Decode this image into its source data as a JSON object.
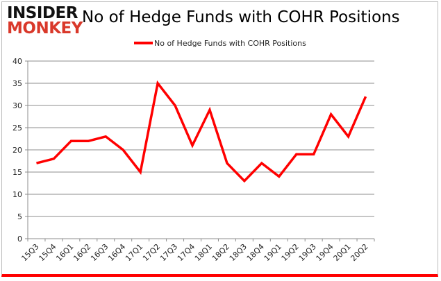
{
  "logo": {
    "line1": "INSIDER",
    "line2": "MONKEY"
  },
  "chart_data": {
    "type": "line",
    "title": "No of Hedge Funds with COHR Positions",
    "categories": [
      "15Q3",
      "15Q4",
      "16Q1",
      "16Q2",
      "16Q3",
      "16Q4",
      "17Q1",
      "17Q2",
      "17Q3",
      "17Q4",
      "18Q1",
      "18Q2",
      "18Q3",
      "18Q4",
      "19Q1",
      "19Q2",
      "19Q3",
      "19Q4",
      "20Q1",
      "20Q2"
    ],
    "series": [
      {
        "name": "No of Hedge Funds with COHR Positions",
        "color": "#ff0000",
        "values": [
          17,
          18,
          22,
          22,
          23,
          20,
          15,
          35,
          30,
          21,
          29,
          17,
          13,
          17,
          14,
          19,
          19,
          28,
          23,
          32
        ]
      }
    ],
    "ylim": [
      0,
      40
    ],
    "yticks": [
      0,
      5,
      10,
      15,
      20,
      25,
      30,
      35,
      40
    ],
    "grid": true,
    "legend": "top"
  }
}
